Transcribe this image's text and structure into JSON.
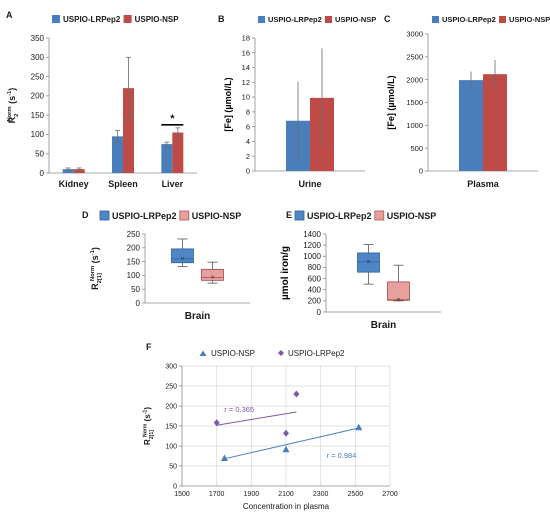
{
  "colors": {
    "lrpep2": "#4a7ebb",
    "nsp": "#be4b48",
    "box_blue": "#4f86c6",
    "box_red": "#e6a19f",
    "scatter_blue": "#4a7ebb",
    "scatter_purple": "#7b5aa6",
    "grid": "#d9d9d9",
    "axis": "#8c8c8c"
  },
  "chart_data": [
    {
      "panel": "A",
      "type": "bar",
      "categories": [
        "Kidney",
        "Spleen",
        "Liver"
      ],
      "series": [
        {
          "name": "USPIO-LRPep2",
          "values": [
            10,
            95,
            75
          ],
          "err": [
            3,
            15,
            5
          ]
        },
        {
          "name": "USPIO-NSP",
          "values": [
            10,
            220,
            105
          ],
          "err": [
            3,
            80,
            12
          ]
        }
      ],
      "ylim": [
        0,
        350
      ],
      "yticks": [
        0,
        50,
        100,
        150,
        200,
        250,
        300,
        350
      ],
      "ylabel": {
        "pre": "R",
        "sub": "2",
        "sup": "Norm",
        "post": " (s",
        "post_sup": "-1",
        "end": ")"
      },
      "annotation": "*",
      "legend": "top"
    },
    {
      "panel": "B",
      "type": "bar",
      "categories": [
        "Urine"
      ],
      "series": [
        {
          "name": "USPIO-LRPep2",
          "values": [
            6.8
          ],
          "err": [
            5.3
          ]
        },
        {
          "name": "USPIO-NSP",
          "values": [
            9.9
          ],
          "err": [
            6.7
          ]
        }
      ],
      "ylim": [
        0,
        18
      ],
      "yticks": [
        0,
        2,
        4,
        6,
        8,
        10,
        12,
        14,
        16,
        18
      ],
      "ylabel": "[Fe] (µmol/L)",
      "legend": "top"
    },
    {
      "panel": "C",
      "type": "bar",
      "categories": [
        "Plasma"
      ],
      "series": [
        {
          "name": "USPIO-LRPep2",
          "values": [
            1990
          ],
          "err": [
            190
          ]
        },
        {
          "name": "USPIO-NSP",
          "values": [
            2120
          ],
          "err": [
            310
          ]
        }
      ],
      "ylim": [
        0,
        3000
      ],
      "yticks": [
        0,
        500,
        1000,
        1500,
        2000,
        2500,
        3000
      ],
      "ylabel": "[Fe] (µmol/L)",
      "legend": "top"
    },
    {
      "panel": "D",
      "type": "box",
      "categories": [
        "Brain"
      ],
      "series": [
        {
          "name": "USPIO-LRPep2",
          "min": 132,
          "q1": 146,
          "median": 160,
          "q3": 196,
          "max": 232,
          "mean": 162
        },
        {
          "name": "USPIO-NSP",
          "min": 72,
          "q1": 82,
          "median": 92,
          "q3": 122,
          "max": 148,
          "mean": 94
        }
      ],
      "ylim": [
        0,
        250
      ],
      "yticks": [
        0,
        50,
        100,
        150,
        200,
        250
      ],
      "ylabel": {
        "pre": "R",
        "sub": "2[1]",
        "sup": "Norm",
        "post": " (s",
        "post_sup": "-1",
        "end": ")"
      },
      "legend": "top"
    },
    {
      "panel": "E",
      "type": "box",
      "categories": [
        "Brain"
      ],
      "series": [
        {
          "name": "USPIO-LRPep2",
          "min": 500,
          "q1": 715,
          "median": 900,
          "q3": 1060,
          "max": 1210,
          "mean": 905
        },
        {
          "name": "USPIO-NSP",
          "min": 200,
          "q1": 210,
          "median": 220,
          "q3": 540,
          "max": 840,
          "mean": 225
        }
      ],
      "ylim": [
        0,
        1400
      ],
      "yticks": [
        0,
        200,
        400,
        600,
        800,
        1000,
        1200,
        1400
      ],
      "ylabel": "µmol iron/g",
      "legend": "top"
    },
    {
      "panel": "F",
      "type": "scatter",
      "series": [
        {
          "name": "USPIO-NSP",
          "marker": "triangle",
          "points": [
            [
              1745,
              70
            ],
            [
              2100,
              92
            ],
            [
              2520,
              147
            ]
          ],
          "trend": [
            [
              1745,
              68
            ],
            [
              2520,
              145
            ]
          ],
          "r_label": "r = 0.984"
        },
        {
          "name": "USPIO-LRPep2",
          "marker": "diamond",
          "points": [
            [
              1700,
              158
            ],
            [
              2100,
              132
            ],
            [
              2160,
              230
            ]
          ],
          "trend": [
            [
              1700,
              152
            ],
            [
              2160,
              185
            ]
          ],
          "r_label": "r = 0.365"
        }
      ],
      "xlim": [
        1500,
        2700
      ],
      "xticks": [
        1500,
        1700,
        1900,
        2100,
        2300,
        2500,
        2700
      ],
      "ylim": [
        0,
        300
      ],
      "yticks": [
        0,
        50,
        100,
        150,
        200,
        250,
        300
      ],
      "xlabel": "Concentration in plasma",
      "ylabel": {
        "pre": "R",
        "sub": "2[1]",
        "sup": "Norm",
        "post": " (s",
        "post_sup": "-1",
        "end": ")"
      },
      "grid": true,
      "legend": "top"
    }
  ]
}
